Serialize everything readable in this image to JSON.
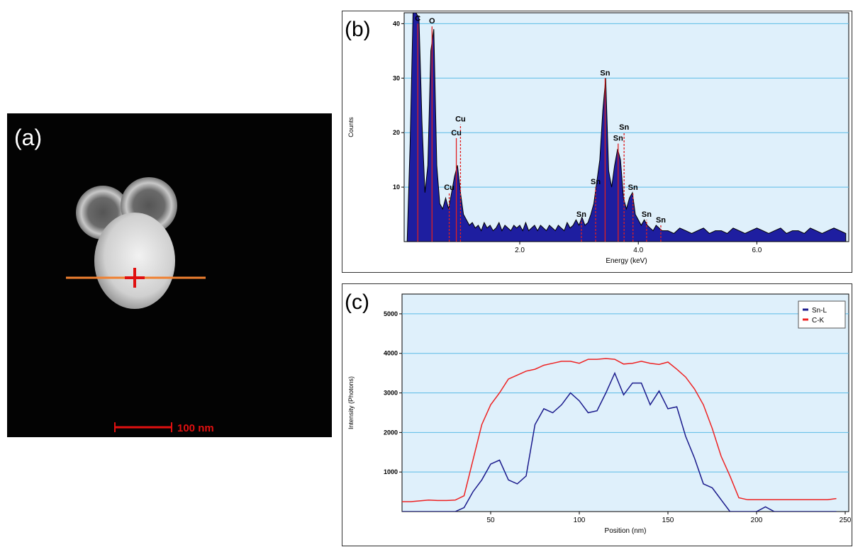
{
  "image": {
    "label": "(a)",
    "scale_bar": "100 nm"
  },
  "chart_data": [
    {
      "type": "area",
      "panel_label": "(b)",
      "xlabel": "Energy (keV)",
      "ylabel": "Counts",
      "color": "#1e1ea0",
      "grid": true,
      "x": [
        0.1,
        0.15,
        0.2,
        0.25,
        0.3,
        0.35,
        0.4,
        0.45,
        0.5,
        0.55,
        0.6,
        0.65,
        0.7,
        0.75,
        0.8,
        0.85,
        0.9,
        0.95,
        1.0,
        1.05,
        1.1,
        1.15,
        1.2,
        1.25,
        1.3,
        1.35,
        1.4,
        1.45,
        1.5,
        1.55,
        1.6,
        1.65,
        1.7,
        1.75,
        1.8,
        1.85,
        1.9,
        1.95,
        2.0,
        2.05,
        2.1,
        2.15,
        2.2,
        2.25,
        2.3,
        2.35,
        2.4,
        2.45,
        2.5,
        2.55,
        2.6,
        2.65,
        2.7,
        2.75,
        2.8,
        2.85,
        2.9,
        2.95,
        3.0,
        3.05,
        3.1,
        3.15,
        3.2,
        3.25,
        3.3,
        3.35,
        3.4,
        3.45,
        3.5,
        3.55,
        3.6,
        3.65,
        3.7,
        3.75,
        3.8,
        3.85,
        3.9,
        3.95,
        4.0,
        4.05,
        4.1,
        4.15,
        4.2,
        4.25,
        4.3,
        4.35,
        4.4,
        4.45,
        4.5,
        4.6,
        4.7,
        4.8,
        4.9,
        5.0,
        5.1,
        5.2,
        5.3,
        5.4,
        5.5,
        5.6,
        5.7,
        5.8,
        5.9,
        6.0,
        6.1,
        6.2,
        6.3,
        6.4,
        6.5,
        6.6,
        6.7,
        6.8,
        6.9,
        7.0,
        7.1,
        7.2,
        7.3,
        7.4,
        7.5
      ],
      "values": [
        0,
        18,
        42,
        42,
        41,
        22,
        9,
        14,
        35,
        39,
        14,
        7,
        6,
        8,
        6,
        9,
        12,
        14,
        9,
        5,
        4,
        3,
        3.5,
        2.5,
        3,
        2,
        3.5,
        2.5,
        3,
        2,
        2.5,
        3.5,
        2,
        3,
        2.5,
        2,
        3,
        2.5,
        3,
        2,
        3.5,
        2,
        2.5,
        3,
        2,
        3,
        2.5,
        2,
        3,
        2.5,
        2,
        3,
        2.5,
        2,
        3.5,
        2.5,
        3,
        4,
        3,
        4.5,
        3,
        3.5,
        5,
        7,
        11,
        15,
        24,
        30,
        13,
        10,
        14,
        17,
        15,
        8,
        6,
        8,
        9,
        5,
        4,
        3,
        4,
        3,
        2.5,
        2,
        3,
        2.5,
        2,
        2,
        2,
        1.5,
        2.5,
        2,
        1.5,
        2,
        2.5,
        1.5,
        2,
        2,
        1.5,
        2.5,
        2,
        1.5,
        2,
        2.5,
        2,
        1.5,
        2,
        2.5,
        1.5,
        2,
        2,
        1.5,
        2.5,
        2,
        1.5,
        2,
        2.5,
        2,
        1.5
      ],
      "xlim": [
        0.05,
        7.55
      ],
      "ylim": [
        0,
        42
      ],
      "xticks": [
        {
          "value": 2,
          "label": "2.0"
        },
        {
          "value": 4,
          "label": "4.0"
        },
        {
          "value": 6,
          "label": "6.0"
        }
      ],
      "yticks": [
        10,
        20,
        30,
        40
      ],
      "annotations": [
        {
          "text": "C",
          "x": 0.28,
          "y": 40,
          "dashed": false
        },
        {
          "text": "O",
          "x": 0.52,
          "y": 39.5,
          "dashed": false
        },
        {
          "text": "Cu",
          "x": 0.81,
          "y": 9,
          "dashed": true
        },
        {
          "text": "Cu",
          "x": 0.93,
          "y": 19,
          "dashed": false
        },
        {
          "text": "Cu",
          "x": 1.0,
          "y": 21.5,
          "dashed": true
        },
        {
          "text": "Sn",
          "x": 3.04,
          "y": 4,
          "dashed": true
        },
        {
          "text": "Sn",
          "x": 3.28,
          "y": 10,
          "dashed": true
        },
        {
          "text": "Sn",
          "x": 3.44,
          "y": 30,
          "dashed": false
        },
        {
          "text": "Sn",
          "x": 3.66,
          "y": 18,
          "dashed": false
        },
        {
          "text": "Sn",
          "x": 3.76,
          "y": 20,
          "dashed": true
        },
        {
          "text": "Sn",
          "x": 3.91,
          "y": 9,
          "dashed": true
        },
        {
          "text": "Sn",
          "x": 4.14,
          "y": 4,
          "dashed": true
        },
        {
          "text": "Sn",
          "x": 4.38,
          "y": 3,
          "dashed": true
        }
      ]
    },
    {
      "type": "line",
      "panel_label": "(c)",
      "xlabel": "Position (nm)",
      "ylabel": "Intensity (Photons)",
      "grid": true,
      "legend": "upper right",
      "x": [
        0,
        5,
        10,
        15,
        20,
        25,
        30,
        35,
        40,
        45,
        50,
        55,
        60,
        65,
        70,
        75,
        80,
        85,
        90,
        95,
        100,
        105,
        110,
        115,
        120,
        125,
        130,
        135,
        140,
        145,
        150,
        155,
        160,
        165,
        170,
        175,
        180,
        185,
        190,
        195,
        200,
        205,
        210,
        215,
        220,
        225,
        230,
        235,
        240,
        245
      ],
      "series": [
        {
          "name": "Sn-L",
          "color": "#1a1a8c",
          "values": [
            0,
            0,
            0,
            0,
            0,
            0,
            0,
            100,
            500,
            800,
            1200,
            1300,
            800,
            700,
            900,
            2200,
            2600,
            2500,
            2700,
            3000,
            2800,
            2500,
            2550,
            3000,
            3500,
            2950,
            3250,
            3250,
            2700,
            3050,
            2600,
            2650,
            1900,
            1350,
            700,
            600,
            300,
            0,
            0,
            0,
            0,
            120,
            0,
            0,
            0,
            0,
            0,
            0,
            0,
            0
          ]
        },
        {
          "name": "C-K",
          "color": "#ee2222",
          "values": [
            250,
            250,
            270,
            290,
            280,
            280,
            290,
            400,
            1300,
            2200,
            2700,
            3000,
            3350,
            3450,
            3550,
            3600,
            3700,
            3750,
            3800,
            3800,
            3750,
            3850,
            3850,
            3870,
            3850,
            3730,
            3750,
            3800,
            3750,
            3720,
            3780,
            3600,
            3400,
            3100,
            2700,
            2100,
            1400,
            900,
            350,
            300,
            300,
            300,
            300,
            300,
            300,
            300,
            300,
            300,
            300,
            330
          ]
        }
      ],
      "xlim": [
        0,
        252
      ],
      "ylim": [
        0,
        5500
      ],
      "xticks": [
        50,
        100,
        150,
        200,
        250
      ],
      "yticks": [
        1000,
        2000,
        3000,
        4000,
        5000
      ]
    }
  ]
}
